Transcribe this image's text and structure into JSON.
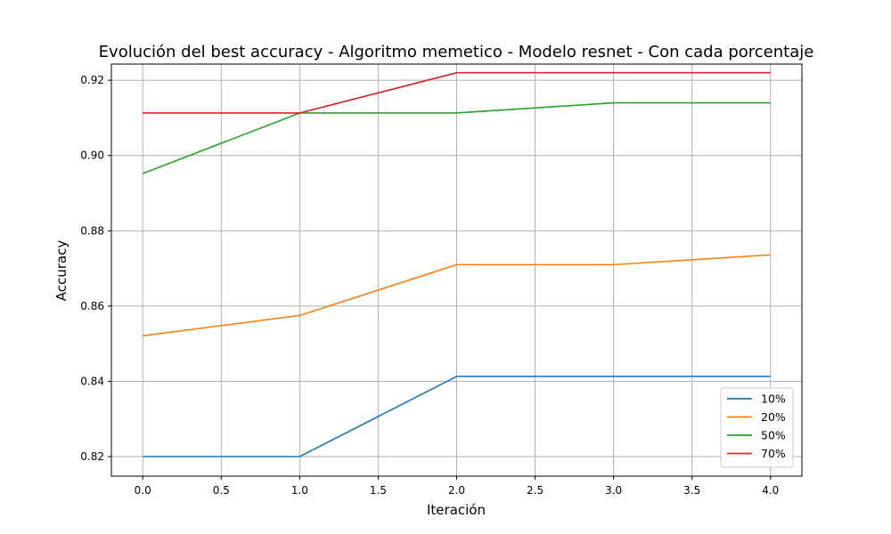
{
  "chart_data": {
    "type": "line",
    "title": "Evolución del best accuracy - Algoritmo memetico - Modelo resnet - Con cada porcentaje",
    "xlabel": "Iteración",
    "ylabel": "Accuracy",
    "x": [
      0,
      1,
      2,
      3,
      4
    ],
    "xlim": [
      -0.2,
      4.2
    ],
    "ylim": [
      0.8148,
      0.9243
    ],
    "xticks": [
      0.0,
      0.5,
      1.0,
      1.5,
      2.0,
      2.5,
      3.0,
      3.5,
      4.0
    ],
    "xtick_labels": [
      "0.0",
      "0.5",
      "1.0",
      "1.5",
      "2.0",
      "2.5",
      "3.0",
      "3.5",
      "4.0"
    ],
    "yticks": [
      0.82,
      0.84,
      0.86,
      0.88,
      0.9,
      0.92
    ],
    "ytick_labels": [
      "0.82",
      "0.84",
      "0.86",
      "0.88",
      "0.90",
      "0.92"
    ],
    "grid": true,
    "legend_position": "lower-right",
    "series": [
      {
        "name": "10%",
        "color": "#1f77b4",
        "values": [
          0.82,
          0.82,
          0.8413,
          0.8413,
          0.8413
        ]
      },
      {
        "name": "20%",
        "color": "#ff7f0e",
        "values": [
          0.8521,
          0.8575,
          0.871,
          0.871,
          0.8736
        ]
      },
      {
        "name": "50%",
        "color": "#2ca02c",
        "values": [
          0.8952,
          0.9113,
          0.9113,
          0.914,
          0.914
        ]
      },
      {
        "name": "70%",
        "color": "#d62728",
        "values": [
          0.9113,
          0.9113,
          0.922,
          0.922,
          0.922
        ]
      }
    ]
  }
}
